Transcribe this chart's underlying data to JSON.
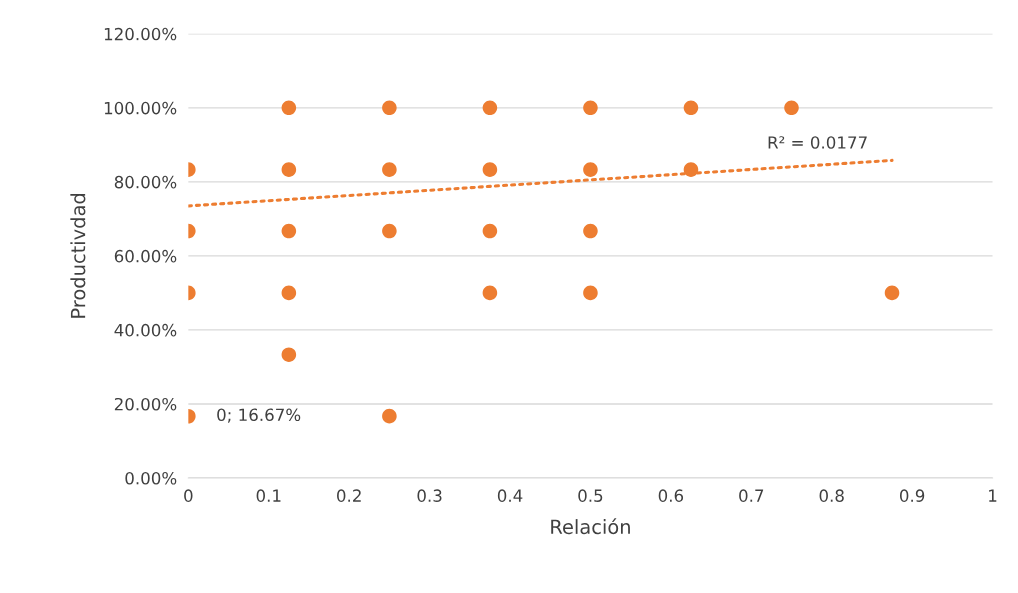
{
  "chart_data": {
    "type": "scatter",
    "xlabel": "Relación",
    "ylabel": "Productivdad",
    "xlim": [
      0,
      1
    ],
    "xticks": [
      0,
      0.1,
      0.2,
      0.3,
      0.4,
      0.5,
      0.6,
      0.7,
      0.8,
      0.9,
      1
    ],
    "ylim": [
      0,
      120
    ],
    "yticks": [
      {
        "value": 0,
        "label": "0.00%"
      },
      {
        "value": 20,
        "label": "20.00%"
      },
      {
        "value": 40,
        "label": "40.00%"
      },
      {
        "value": 60,
        "label": "60.00%"
      },
      {
        "value": 80,
        "label": "80.00%"
      },
      {
        "value": 100,
        "label": "100.00%"
      },
      {
        "value": 120,
        "label": "120.00%"
      }
    ],
    "grid": "y",
    "marker": "circle",
    "series": [
      {
        "color": "#ed7d31",
        "x": [
          0,
          0,
          0,
          0,
          0.125,
          0.125,
          0.125,
          0.125,
          0.125,
          0.25,
          0.25,
          0.25,
          0.25,
          0.375,
          0.375,
          0.375,
          0.375,
          0.5,
          0.5,
          0.5,
          0.5,
          0.625,
          0.625,
          0.75,
          0.875
        ],
        "values": [
          83.3,
          66.7,
          50,
          16.67,
          100,
          83.3,
          66.7,
          50,
          33.3,
          100,
          83.3,
          66.7,
          16.7,
          100,
          83.3,
          66.7,
          50,
          100,
          83.3,
          66.7,
          50,
          100,
          83.3,
          100,
          50
        ]
      },
      {
        "type": "line",
        "marker": "none",
        "color": "#ed7d31",
        "line_style": "dotted",
        "x": [
          0,
          0.875
        ],
        "values": [
          73.5,
          85.8
        ]
      }
    ],
    "annotations": [
      "R² = 0.0177",
      {
        "text": "0; 16.67%",
        "x": 0,
        "y": 16.67
      }
    ]
  }
}
